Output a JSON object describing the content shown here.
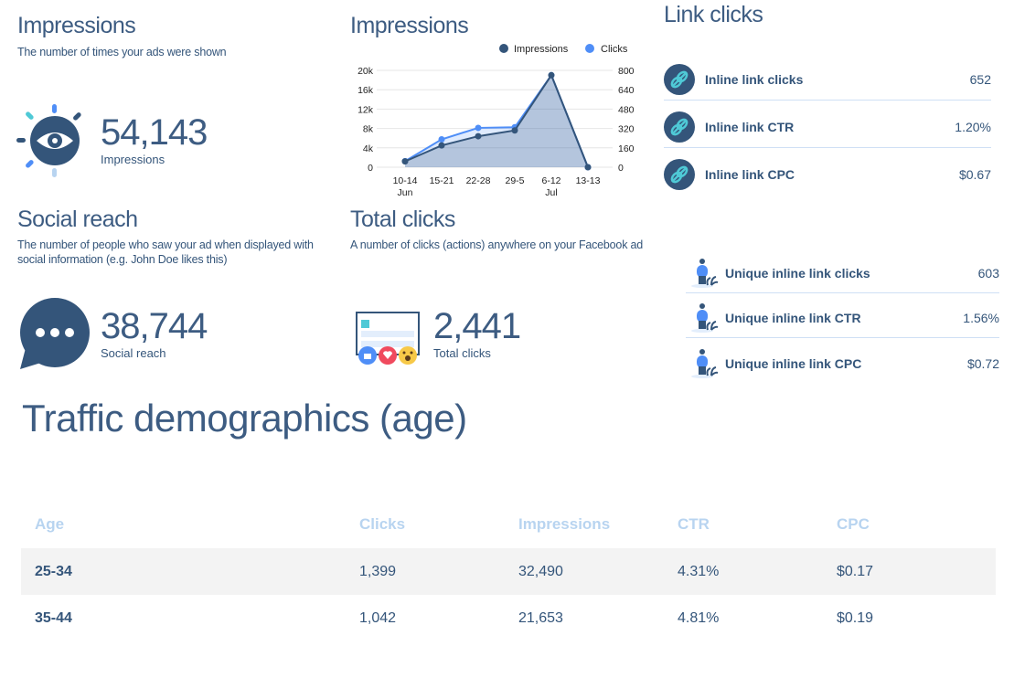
{
  "impressions_card": {
    "title": "Impressions",
    "description": "The number of times your ads were shown",
    "value": "54,143",
    "value_label": "Impressions",
    "icon": "eye-icon"
  },
  "social_card": {
    "title": "Social reach",
    "description_lines": [
      "The number of people who saw your ad when displayed with",
      "social information (e.g. John Doe likes this)"
    ],
    "value": "38,744",
    "value_label": "Social reach",
    "icon": "speech-bubble-icon"
  },
  "clicks_card": {
    "title": "Total clicks",
    "description": "A number of clicks (actions) anywhere on your Facebook ad",
    "value": "2,441",
    "value_label": "Total clicks",
    "icon": "facebook-post-reactions-icon"
  },
  "link_clicks": {
    "title": "Link clicks",
    "items": [
      {
        "label": "Inline link clicks",
        "value": "652",
        "icon": "link-icon"
      },
      {
        "label": "Inline link CTR",
        "value": "1.20%",
        "icon": "link-icon"
      },
      {
        "label": "Inline link CPC",
        "value": "$0.67",
        "icon": "link-icon"
      }
    ]
  },
  "unique_links": {
    "items": [
      {
        "label": "Unique inline link clicks",
        "value": "603",
        "icon": "person-plant-icon"
      },
      {
        "label": "Unique inline link CTR",
        "value": "1.56%",
        "icon": "person-plant-icon"
      },
      {
        "label": "Unique inline link CPC",
        "value": "$0.72",
        "icon": "person-plant-icon"
      }
    ]
  },
  "demographics": {
    "title": "Traffic demographics (age)",
    "columns": [
      "Age",
      "Clicks",
      "Impressions",
      "CTR",
      "CPC"
    ],
    "rows": [
      [
        "25-34",
        "1,399",
        "32,490",
        "4.31%",
        "$0.17"
      ],
      [
        "35-44",
        "1,042",
        "21,653",
        "4.81%",
        "$0.19"
      ]
    ]
  },
  "chart_data": {
    "type": "area",
    "title": "Impressions",
    "categories": [
      "10-14",
      "15-21",
      "22-28",
      "29-5",
      "6-12",
      "13-13"
    ],
    "category_sublabels": [
      "Jun",
      "",
      "",
      "",
      "Jul",
      ""
    ],
    "y_left": {
      "ticks": [
        "0",
        "4k",
        "8k",
        "12k",
        "16k",
        "20k"
      ],
      "range": [
        0,
        20000
      ]
    },
    "y_right": {
      "ticks": [
        "0",
        "160",
        "320",
        "480",
        "640",
        "800"
      ],
      "range": [
        0,
        800
      ]
    },
    "series": [
      {
        "name": "Impressions",
        "axis": "left",
        "color": "#34557a",
        "values": [
          1200,
          4500,
          6400,
          7600,
          19000,
          0
        ]
      },
      {
        "name": "Clicks",
        "axis": "right",
        "color": "#4f8ef7",
        "values": [
          50,
          230,
          325,
          330,
          760,
          0
        ]
      }
    ],
    "legend": "top-right",
    "grid": true
  },
  "colors": {
    "primary": "#34557a",
    "accent": "#4f8ef7",
    "teal": "#4fc9d6",
    "header": "#b8d4f0"
  }
}
